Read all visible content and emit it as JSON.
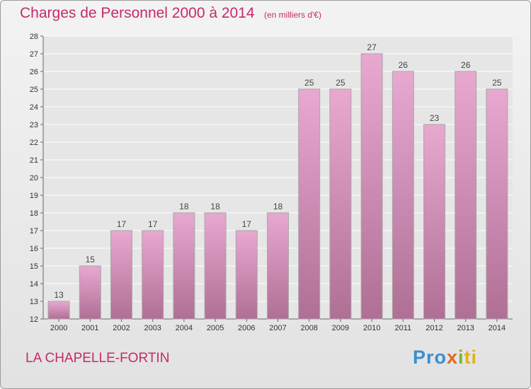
{
  "header": {
    "title": "Charges de Personnel 2000 à 2014",
    "subtitle": "(en milliers d'€)"
  },
  "footer": {
    "town": "LA CHAPELLE-FORTIN",
    "logo_parts": [
      "Pro",
      "x",
      "i",
      "ti"
    ]
  },
  "colors": {
    "accent": "#c62a6a",
    "bar_top": "#e8a8d0",
    "bar_bottom": "#b06f95"
  },
  "chart_data": {
    "type": "bar",
    "categories": [
      "2000",
      "2001",
      "2002",
      "2003",
      "2004",
      "2005",
      "2006",
      "2007",
      "2008",
      "2009",
      "2010",
      "2011",
      "2012",
      "2013",
      "2014"
    ],
    "values": [
      13,
      15,
      17,
      17,
      18,
      18,
      17,
      18,
      25,
      25,
      27,
      26,
      23,
      26,
      25
    ],
    "ylim": [
      12,
      28
    ],
    "yticks": [
      12,
      13,
      14,
      15,
      16,
      17,
      18,
      19,
      20,
      21,
      22,
      23,
      24,
      25,
      26,
      27,
      28
    ],
    "grid": true,
    "data_labels": true
  }
}
